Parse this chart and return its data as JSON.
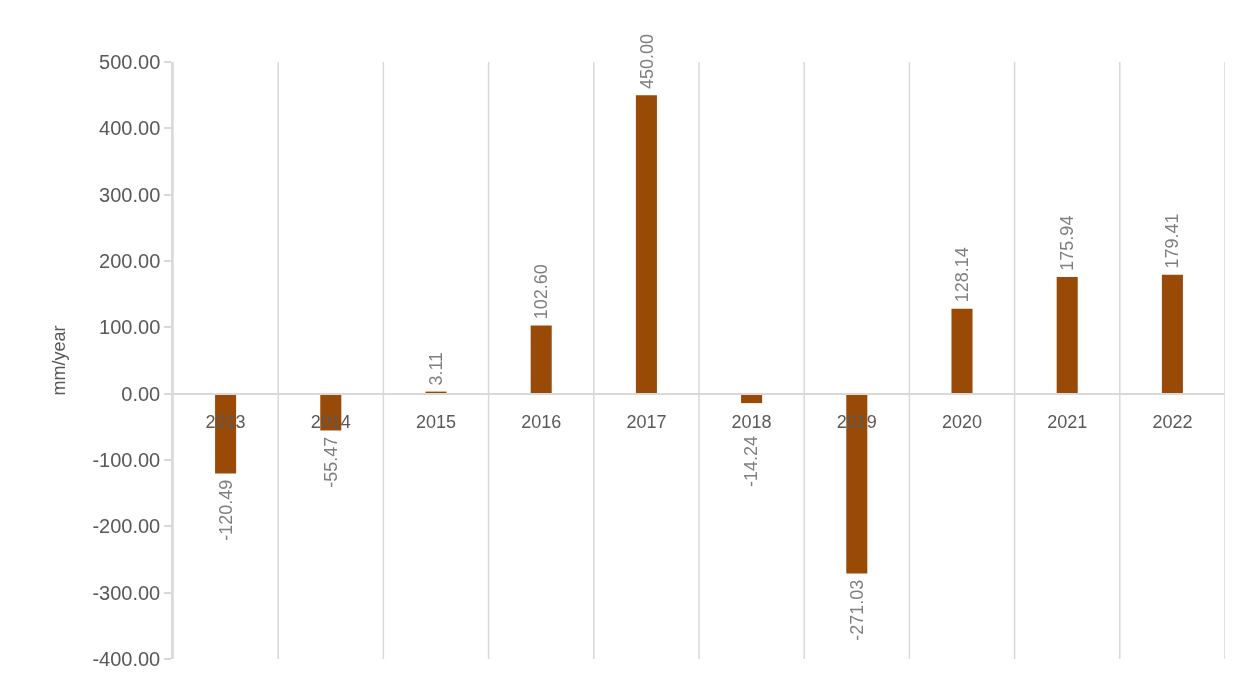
{
  "chart_data": {
    "type": "bar",
    "ylabel": "mm/year",
    "categories": [
      "2013",
      "2014",
      "2015",
      "2016",
      "2017",
      "2018",
      "2019",
      "2020",
      "2021",
      "2022"
    ],
    "values": [
      -120.49,
      -55.47,
      3.11,
      102.6,
      450.0,
      -14.24,
      -271.03,
      128.14,
      175.94,
      179.41
    ],
    "value_labels": [
      "-120.49",
      "-55.47",
      "3.11",
      "102.60",
      "450.00",
      "-14.24",
      "-271.03",
      "128.14",
      "175.94",
      "179.41"
    ],
    "color": "#994a06",
    "ylim": [
      -400,
      500
    ],
    "yticks": [
      {
        "value": 500,
        "label": "500.00"
      },
      {
        "value": 400,
        "label": "400.00"
      },
      {
        "value": 300,
        "label": "300.00"
      },
      {
        "value": 200,
        "label": "200.00"
      },
      {
        "value": 100,
        "label": "100.00"
      },
      {
        "value": 0,
        "label": "0.00"
      },
      {
        "value": -100,
        "label": "-100.00"
      },
      {
        "value": -200,
        "label": "-200.00"
      },
      {
        "value": -300,
        "label": "-300.00"
      },
      {
        "value": -400,
        "label": "-400.00"
      }
    ],
    "grid": "x"
  }
}
